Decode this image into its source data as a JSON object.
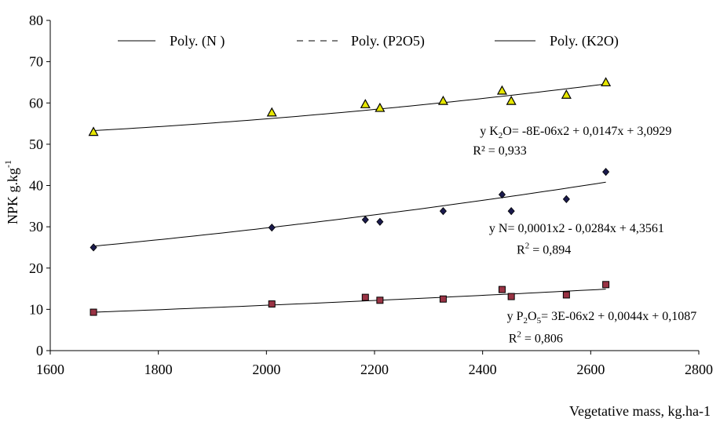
{
  "chart_data": {
    "type": "scatter",
    "xlabel": "Vegetative mass, kg.ha-1",
    "ylabel_main": "NPK g.kg",
    "ylabel_sup": "-1",
    "xlim": [
      1600,
      2800
    ],
    "ylim": [
      0,
      80
    ],
    "x_ticks": [
      "1600",
      "1800",
      "2000",
      "2200",
      "2400",
      "2600",
      "2800"
    ],
    "y_ticks": [
      "0",
      "10",
      "20",
      "30",
      "40",
      "50",
      "60",
      "70",
      "80"
    ],
    "grid": false,
    "legend": {
      "placement": "top",
      "entries": [
        {
          "label": "Poly. (N )",
          "style": "solid"
        },
        {
          "label": "Poly. (P2O5)",
          "style": "dashed"
        },
        {
          "label": "Poly. (K2O)",
          "style": "solid"
        }
      ]
    },
    "series": [
      {
        "key": "K2O",
        "marker": "triangle",
        "marker_color": "#e6e600",
        "points": [
          [
            1680,
            53
          ],
          [
            2010,
            57.7
          ],
          [
            2183,
            59.7
          ],
          [
            2210,
            58.8
          ],
          [
            2327,
            60.5
          ],
          [
            2436,
            63
          ],
          [
            2453,
            60.5
          ],
          [
            2555,
            62
          ],
          [
            2628,
            65
          ]
        ],
        "trend": {
          "a": -8e-06,
          "b": 0.0147,
          "c": 3.0929
        },
        "fit_anchor": [
          [
            1680,
            53.3
          ],
          [
            2628,
            64.6
          ]
        ]
      },
      {
        "key": "N",
        "marker": "diamond",
        "marker_color": "#1a1a4d",
        "points": [
          [
            1680,
            25
          ],
          [
            2010,
            29.8
          ],
          [
            2183,
            31.7
          ],
          [
            2210,
            31.2
          ],
          [
            2327,
            33.8
          ],
          [
            2436,
            37.8
          ],
          [
            2453,
            33.8
          ],
          [
            2555,
            36.7
          ],
          [
            2628,
            43.3
          ]
        ],
        "trend": {
          "a": 0.0001,
          "b": -0.0284,
          "c": 4.3561
        },
        "fit_anchor": [
          [
            1680,
            25.3
          ],
          [
            2628,
            40.8
          ]
        ]
      },
      {
        "key": "P2O5",
        "marker": "square",
        "marker_color": "#993344",
        "points": [
          [
            1680,
            9.3
          ],
          [
            2010,
            11.3
          ],
          [
            2183,
            12.9
          ],
          [
            2210,
            12.2
          ],
          [
            2327,
            12.5
          ],
          [
            2436,
            14.8
          ],
          [
            2453,
            13.1
          ],
          [
            2555,
            13.5
          ],
          [
            2628,
            16
          ]
        ],
        "trend": {
          "a": 3e-06,
          "b": 0.0044,
          "c": 0.1087
        },
        "fit_anchor": [
          [
            1680,
            9.3
          ],
          [
            2628,
            14.9
          ]
        ]
      }
    ],
    "annotations": [
      {
        "key": "k2o_eq",
        "prefix": "y K",
        "sub1": "2",
        "mid": "O= -8E-06x2 + 0,0147x + 3,0929",
        "x": 2395,
        "y": 52.3
      },
      {
        "key": "k2o_r2",
        "text": "R² = 0,933",
        "x": 2382,
        "y": 47.5
      },
      {
        "key": "n_eq",
        "text": "y N= 0,0001x2 - 0,0284x + 4,3561",
        "x": 2412,
        "y": 28.7
      },
      {
        "key": "n_r2",
        "prefix": "R",
        "sup": "2",
        "mid": " = 0,894",
        "x": 2463,
        "y": 23.5
      },
      {
        "key": "p_eq",
        "prefix": "y P",
        "sub1": "2",
        "mid1": "O",
        "sub2": "5",
        "mid": "= 3E-06x2 + 0,0044x + 0,1087",
        "x": 2445,
        "y": 7.4
      },
      {
        "key": "p_r2",
        "prefix": "R",
        "sup": "2",
        "mid": " = 0,806",
        "x": 2448,
        "y": 2.0
      }
    ]
  }
}
